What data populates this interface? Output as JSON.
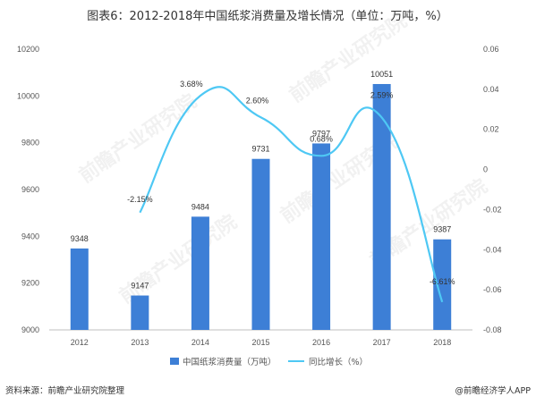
{
  "title": "图表6：2012-2018年中国纸浆消费量及增长情况（单位：万吨，%）",
  "footer": {
    "source": "资料来源：前瞻产业研究院整理",
    "brand": "@前瞻经济学人APP"
  },
  "watermark": "前瞻产业研究院",
  "chart_data": {
    "type": "bar",
    "categories": [
      "2012",
      "2013",
      "2014",
      "2015",
      "2016",
      "2017",
      "2018"
    ],
    "series": [
      {
        "name": "中国纸浆消费量（万吨）",
        "type": "bar",
        "axis": "left",
        "color": "#3d7fd6",
        "values": [
          9348,
          9147,
          9484,
          9731,
          9797,
          10051,
          9387
        ],
        "labels": [
          "9348",
          "9147",
          "9484",
          "9731",
          "9797",
          "10051",
          "9387"
        ]
      },
      {
        "name": "同比增长（%）",
        "type": "line",
        "axis": "right",
        "color": "#4ec8f4",
        "values": [
          null,
          -0.0215,
          0.0368,
          0.026,
          0.0068,
          0.0259,
          -0.0661
        ],
        "labels": [
          "",
          "-2.15%",
          "3.68%",
          "2.60%",
          "0.68%",
          "2.59%",
          "-6.61%"
        ]
      }
    ],
    "y_left": {
      "min": 9000,
      "max": 10200,
      "ticks": [
        "9000",
        "9200",
        "9400",
        "9600",
        "9800",
        "10000",
        "10200"
      ]
    },
    "y_right": {
      "min": -0.08,
      "max": 0.06,
      "ticks": [
        "-0.08",
        "-0.06",
        "-0.04",
        "-0.02",
        "0",
        "0.02",
        "0.04",
        "0.06"
      ]
    },
    "grid": false,
    "legend_position": "bottom-center"
  }
}
